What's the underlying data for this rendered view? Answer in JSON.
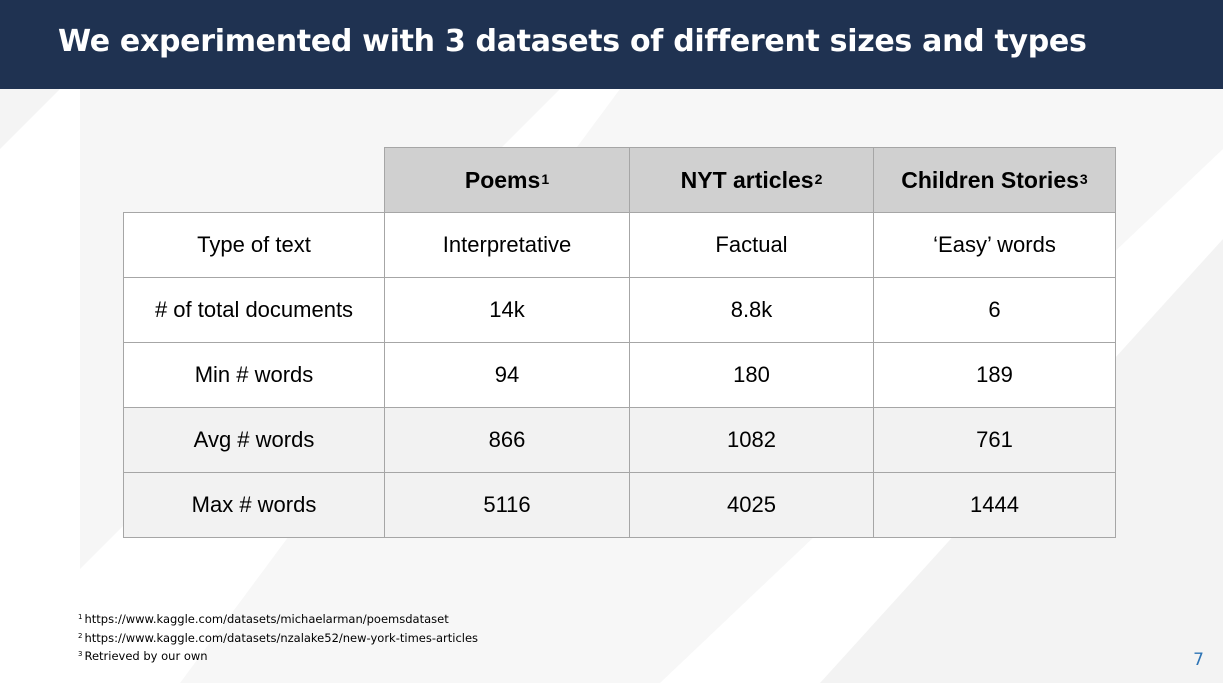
{
  "title": "We experimented with 3 datasets of different sizes and types",
  "table": {
    "columns": [
      {
        "label": "Poems",
        "note": "1"
      },
      {
        "label": "NYT articles",
        "note": "2"
      },
      {
        "label": "Children Stories",
        "note": "3"
      }
    ],
    "rows": [
      {
        "label": "Type of text",
        "values": [
          "Interpretative",
          "Factual",
          "‘Easy’ words"
        ]
      },
      {
        "label": "# of total documents",
        "values": [
          "14k",
          "8.8k",
          "6"
        ]
      },
      {
        "label": "Min # words",
        "values": [
          "94",
          "180",
          "189"
        ]
      },
      {
        "label": "Avg # words",
        "values": [
          "866",
          "1082",
          "761"
        ]
      },
      {
        "label": "Max # words",
        "values": [
          "5116",
          "4025",
          "1444"
        ]
      }
    ]
  },
  "footnotes": [
    {
      "mark": "1",
      "text": "https://www.kaggle.com/datasets/michaelarman/poemsdataset"
    },
    {
      "mark": "2",
      "text": "https://www.kaggle.com/datasets/nzalake52/new-york-times-articles"
    },
    {
      "mark": "3",
      "text": "Retrieved by our own"
    }
  ],
  "page_number": "7",
  "colors": {
    "title_bar": "#1f3251",
    "header_fill": "#d0d0d0",
    "page_number": "#2e74b5"
  }
}
